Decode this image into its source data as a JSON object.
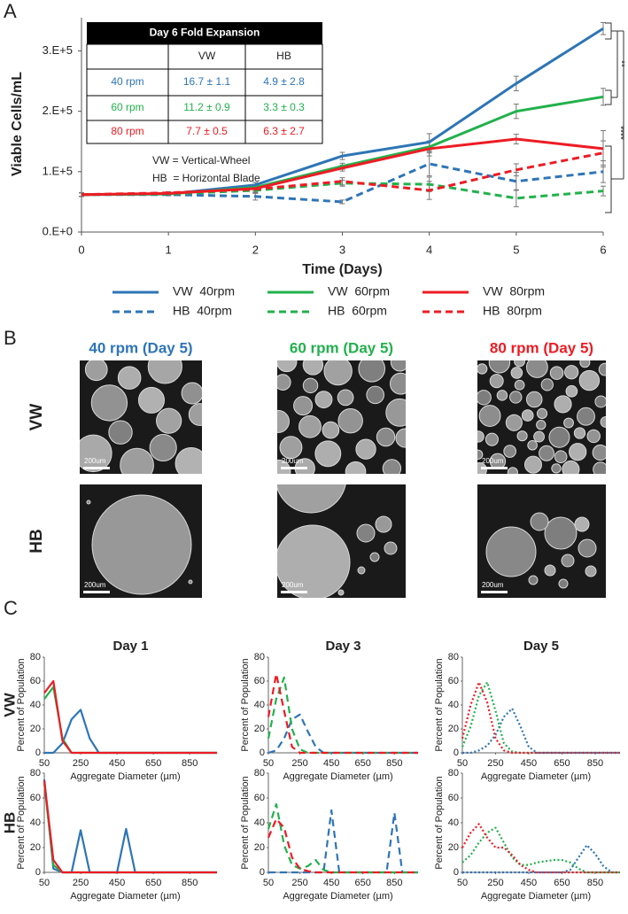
{
  "panel_labels": [
    "A",
    "B",
    "C"
  ],
  "chart_data": [
    {
      "type": "line",
      "xlabel": "Time (Days)",
      "ylabel": "Viable Cells/mL",
      "x": [
        0,
        1,
        2,
        3,
        4,
        5,
        6
      ],
      "xlim": [
        0,
        6
      ],
      "xticks": [
        0,
        1,
        2,
        3,
        4,
        5,
        6
      ],
      "ylim": [
        0,
        355000
      ],
      "yticks": [
        {
          "value": 0,
          "label": "0.E+0"
        },
        {
          "value": 100000,
          "label": "1.E+5"
        },
        {
          "value": 200000,
          "label": "2.E+5"
        },
        {
          "value": 300000,
          "label": "3.E+5"
        }
      ],
      "series": [
        {
          "name": "VW  40rpm",
          "color": "#2e75b6",
          "dash": "solid",
          "values": [
            62000,
            63000,
            78000,
            126000,
            149000,
            246000,
            337000
          ],
          "errors": [
            3000,
            2000,
            4000,
            6000,
            14000,
            12000,
            10000
          ]
        },
        {
          "name": "HB  40rpm",
          "color": "#2e75b6",
          "dash": "dashed",
          "values": [
            62000,
            62000,
            59000,
            50000,
            113000,
            84000,
            100000
          ],
          "errors": [
            3000,
            2000,
            6000,
            3000,
            20000,
            15000,
            18000
          ]
        },
        {
          "name": "VW  60rpm",
          "color": "#22b14c",
          "dash": "solid",
          "values": [
            62000,
            63000,
            74000,
            109000,
            141000,
            200000,
            224000
          ],
          "errors": [
            3000,
            2000,
            4000,
            5000,
            10000,
            12000,
            14000
          ]
        },
        {
          "name": "HB  60rpm",
          "color": "#22b14c",
          "dash": "dashed",
          "values": [
            62000,
            63000,
            69000,
            81000,
            79000,
            56000,
            68000
          ],
          "errors": [
            3000,
            2000,
            5000,
            5000,
            12000,
            14000,
            8000
          ]
        },
        {
          "name": "VW  80rpm",
          "color": "#ed1c24",
          "dash": "solid",
          "values": [
            62000,
            64000,
            72000,
            106000,
            138000,
            154000,
            138000
          ],
          "errors": [
            3000,
            2000,
            4000,
            5000,
            12000,
            8000,
            30000
          ]
        },
        {
          "name": "HB  80rpm",
          "color": "#ed1c24",
          "dash": "dashed",
          "values": [
            62000,
            65000,
            71000,
            84000,
            69000,
            103000,
            131000
          ],
          "errors": [
            3000,
            2000,
            5000,
            6000,
            15000,
            10000,
            20000
          ]
        }
      ],
      "table": {
        "title": "Day 6 Fold Expansion",
        "header": [
          "VW",
          "HB"
        ],
        "rows": [
          {
            "label": "40 rpm",
            "color": "#2e75b6",
            "cells": [
              "16.7 ± 1.1",
              "4.9 ± 2.8"
            ]
          },
          {
            "label": "60 rpm",
            "color": "#22b14c",
            "cells": [
              "11.2 ± 0.9",
              "3.3 ± 0.3"
            ]
          },
          {
            "label": "80 rpm",
            "color": "#ed1c24",
            "cells": [
              "7.7 ± 0.5",
              "6.3 ± 2.7"
            ]
          }
        ]
      },
      "notes": [
        "VW = Vertical-Wheel",
        "HB  = Horizontal Blade"
      ],
      "annotations": [
        "**",
        "****"
      ]
    },
    {
      "type": "line",
      "title": "Day 1",
      "dash": "solid",
      "xlabel": "Aggregate Diameter (µm)",
      "ylabel": "Percent of Population",
      "x": [
        50,
        100,
        150,
        200,
        250,
        300,
        350,
        400,
        450,
        500,
        550,
        600,
        650,
        700,
        750,
        800,
        850,
        900,
        950,
        1000
      ],
      "xlim": [
        50,
        1000
      ],
      "xticks": [
        50,
        250,
        450,
        650,
        850
      ],
      "ylim": [
        0,
        80
      ],
      "yticks": [
        0,
        20,
        40,
        60,
        80
      ],
      "series": [
        {
          "color": "#2e75b6",
          "values": [
            0,
            0,
            8,
            28,
            36,
            12,
            0,
            0,
            0,
            0,
            0,
            0,
            0,
            0,
            0,
            0,
            0,
            0,
            0,
            0
          ]
        },
        {
          "color": "#22b14c",
          "values": [
            45,
            55,
            12,
            0,
            0,
            0,
            0,
            0,
            0,
            0,
            0,
            0,
            0,
            0,
            0,
            0,
            0,
            0,
            0,
            0
          ]
        },
        {
          "color": "#ed1c24",
          "values": [
            50,
            60,
            10,
            0,
            0,
            0,
            0,
            0,
            0,
            0,
            0,
            0,
            0,
            0,
            0,
            0,
            0,
            0,
            0,
            0
          ]
        }
      ]
    },
    {
      "type": "line",
      "title": "Day 3",
      "dash": "dashed",
      "xlabel": "Aggregate Diameter (µm)",
      "ylabel": "Percent of Population",
      "x": [
        50,
        100,
        150,
        200,
        250,
        300,
        350,
        400,
        450,
        500,
        550,
        600,
        650,
        700,
        750,
        800,
        850,
        900,
        950,
        1000
      ],
      "xlim": [
        50,
        1000
      ],
      "xticks": [
        50,
        250,
        450,
        650,
        850
      ],
      "ylim": [
        0,
        80
      ],
      "yticks": [
        0,
        20,
        40,
        60,
        80
      ],
      "series": [
        {
          "color": "#2e75b6",
          "values": [
            0,
            2,
            12,
            28,
            32,
            18,
            5,
            0,
            0,
            0,
            0,
            0,
            0,
            0,
            0,
            0,
            0,
            0,
            0,
            0
          ]
        },
        {
          "color": "#22b14c",
          "values": [
            12,
            45,
            63,
            20,
            3,
            0,
            0,
            0,
            0,
            0,
            0,
            0,
            0,
            0,
            0,
            0,
            0,
            0,
            0,
            0
          ]
        },
        {
          "color": "#ed1c24",
          "values": [
            30,
            66,
            35,
            5,
            0,
            0,
            0,
            0,
            0,
            0,
            0,
            0,
            0,
            0,
            0,
            0,
            0,
            0,
            0,
            0
          ]
        }
      ]
    },
    {
      "type": "line",
      "title": "Day 5",
      "dash": "dotted",
      "xlabel": "Aggregate Diameter (µm)",
      "ylabel": "Percent of Population",
      "x": [
        50,
        100,
        150,
        200,
        250,
        300,
        350,
        400,
        450,
        500,
        550,
        600,
        650,
        700,
        750,
        800,
        850,
        900,
        950,
        1000
      ],
      "xlim": [
        50,
        1000
      ],
      "xticks": [
        50,
        250,
        450,
        650,
        850
      ],
      "ylim": [
        0,
        80
      ],
      "yticks": [
        0,
        20,
        40,
        60,
        80
      ],
      "series": [
        {
          "color": "#2e75b6",
          "values": [
            0,
            0,
            2,
            6,
            15,
            30,
            37,
            22,
            5,
            0,
            0,
            0,
            0,
            0,
            0,
            0,
            0,
            0,
            0,
            0
          ]
        },
        {
          "color": "#22b14c",
          "values": [
            5,
            22,
            48,
            59,
            35,
            8,
            1,
            0,
            0,
            0,
            0,
            0,
            0,
            0,
            0,
            0,
            0,
            0,
            0,
            0
          ]
        },
        {
          "color": "#ed1c24",
          "values": [
            12,
            40,
            59,
            42,
            12,
            2,
            0,
            0,
            0,
            0,
            0,
            0,
            0,
            0,
            0,
            0,
            0,
            0,
            0,
            0
          ]
        }
      ]
    },
    {
      "type": "line",
      "dash": "solid",
      "xlabel": "Aggregate Diameter (µm)",
      "ylabel": "Percent of Population",
      "x": [
        50,
        100,
        150,
        200,
        250,
        300,
        350,
        400,
        450,
        500,
        550,
        600,
        650,
        700,
        750,
        800,
        850,
        900,
        950,
        1000
      ],
      "xlim": [
        50,
        1000
      ],
      "xticks": [
        50,
        250,
        450,
        650,
        850
      ],
      "ylim": [
        0,
        80
      ],
      "yticks": [
        0,
        20,
        40,
        60,
        80
      ],
      "series": [
        {
          "color": "#2e75b6",
          "values": [
            75,
            3,
            0,
            0,
            34,
            0,
            0,
            0,
            0,
            35,
            0,
            0,
            0,
            0,
            0,
            0,
            0,
            0,
            0,
            0
          ]
        },
        {
          "color": "#22b14c",
          "values": [
            72,
            6,
            0,
            0,
            0,
            0,
            0,
            0,
            0,
            0,
            0,
            0,
            0,
            0,
            0,
            0,
            0,
            0,
            0,
            0
          ]
        },
        {
          "color": "#ed1c24",
          "values": [
            74,
            10,
            0,
            0,
            0,
            0,
            0,
            0,
            0,
            0,
            0,
            0,
            0,
            0,
            0,
            0,
            0,
            0,
            0,
            0
          ]
        }
      ]
    },
    {
      "type": "line",
      "dash": "dashed",
      "xlabel": "Aggregate Diameter (µm)",
      "ylabel": "Percent of Population",
      "x": [
        50,
        100,
        150,
        200,
        250,
        300,
        350,
        400,
        450,
        500,
        550,
        600,
        650,
        700,
        750,
        800,
        850,
        900,
        950,
        1000
      ],
      "xlim": [
        50,
        1000
      ],
      "xticks": [
        50,
        250,
        450,
        650,
        850
      ],
      "ylim": [
        0,
        80
      ],
      "yticks": [
        0,
        20,
        40,
        60,
        80
      ],
      "series": [
        {
          "color": "#2e75b6",
          "values": [
            0,
            0,
            0,
            0,
            0,
            0,
            0,
            0,
            50,
            0,
            0,
            0,
            0,
            0,
            0,
            0,
            48,
            0,
            0,
            0
          ]
        },
        {
          "color": "#22b14c",
          "values": [
            35,
            55,
            22,
            6,
            3,
            5,
            10,
            2,
            0,
            0,
            0,
            0,
            0,
            0,
            0,
            0,
            0,
            0,
            0,
            0
          ]
        },
        {
          "color": "#ed1c24",
          "values": [
            28,
            43,
            36,
            12,
            3,
            1,
            0,
            0,
            0,
            0,
            0,
            0,
            0,
            0,
            0,
            0,
            0,
            0,
            0,
            0
          ]
        }
      ]
    },
    {
      "type": "line",
      "dash": "dotted",
      "xlabel": "Aggregate Diameter (µm)",
      "ylabel": "Percent of Population",
      "x": [
        50,
        100,
        150,
        200,
        250,
        300,
        350,
        400,
        450,
        500,
        550,
        600,
        650,
        700,
        750,
        800,
        850,
        900,
        950,
        1000
      ],
      "xlim": [
        50,
        1000
      ],
      "xticks": [
        50,
        250,
        450,
        650,
        850
      ],
      "ylim": [
        0,
        80
      ],
      "yticks": [
        0,
        20,
        40,
        60,
        80
      ],
      "series": [
        {
          "color": "#2e75b6",
          "values": [
            0,
            0,
            0,
            0,
            0,
            0,
            0,
            0,
            0,
            0,
            0,
            0,
            0,
            2,
            12,
            22,
            15,
            5,
            0,
            0
          ]
        },
        {
          "color": "#22b14c",
          "values": [
            8,
            14,
            24,
            32,
            36,
            24,
            12,
            6,
            6,
            8,
            9,
            10,
            10,
            8,
            3,
            0,
            0,
            0,
            0,
            0
          ]
        },
        {
          "color": "#ed1c24",
          "values": [
            20,
            32,
            39,
            28,
            20,
            20,
            14,
            6,
            2,
            0,
            0,
            0,
            0,
            0,
            0,
            0,
            0,
            0,
            0,
            0
          ]
        }
      ]
    }
  ],
  "panel_b": {
    "columns": [
      {
        "title": "40 rpm (Day 5)",
        "color": "#2e75b6"
      },
      {
        "title": "60 rpm (Day 5)",
        "color": "#22b14c"
      },
      {
        "title": "80 rpm (Day 5)",
        "color": "#ed1c24"
      }
    ],
    "rows": [
      "VW",
      "HB"
    ],
    "scale_bar": "200um"
  },
  "panel_c": {
    "rows": [
      "VW",
      "HB"
    ]
  }
}
